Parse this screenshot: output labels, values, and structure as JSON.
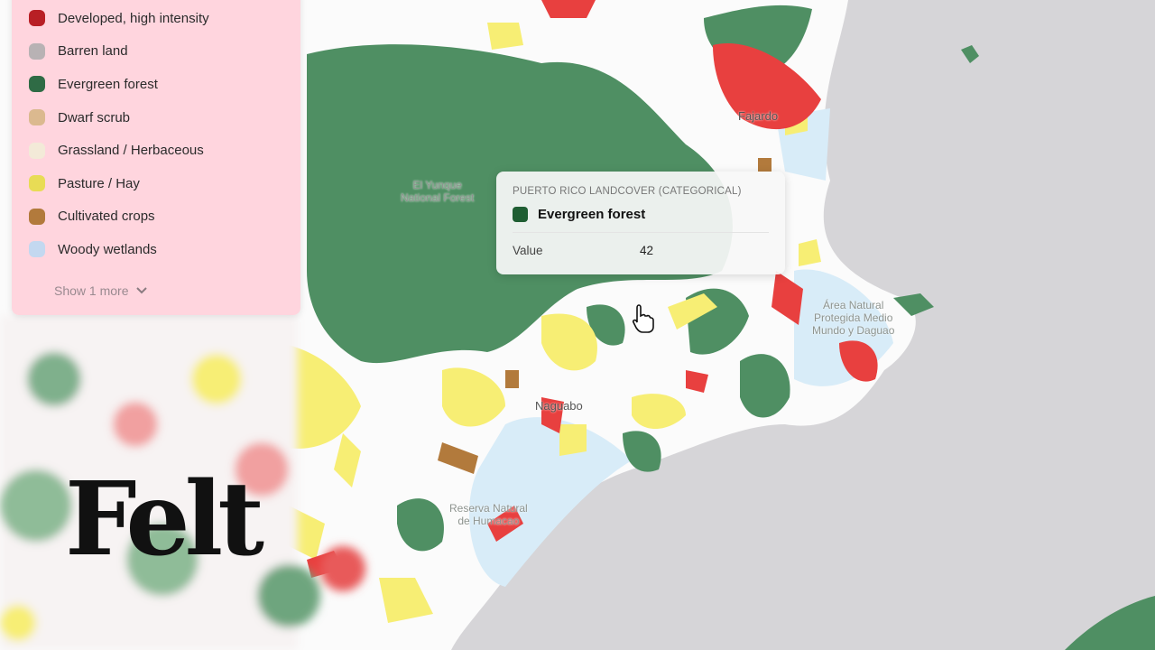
{
  "legend": {
    "items": [
      {
        "label": "Developed, high intensity",
        "color": "#b81f25"
      },
      {
        "label": "Barren land",
        "color": "#b8b2b4"
      },
      {
        "label": "Evergreen forest",
        "color": "#2f6b45"
      },
      {
        "label": "Dwarf scrub",
        "color": "#dbb98f"
      },
      {
        "label": "Grassland / Herbaceous",
        "color": "#f3ead8"
      },
      {
        "label": "Pasture / Hay",
        "color": "#e8dc55"
      },
      {
        "label": "Cultivated crops",
        "color": "#b27a3c"
      },
      {
        "label": "Woody wetlands",
        "color": "#c3d8f0"
      }
    ],
    "show_more": "Show 1 more",
    "show_more_icon": "chevron-down-icon"
  },
  "tooltip": {
    "layer": "PUERTO RICO LANDCOVER (CATEGORICAL)",
    "category": "Evergreen forest",
    "category_color": "#1f5e33",
    "value_label": "Value",
    "value": "42"
  },
  "map_labels": {
    "fajardo": "Fajardo",
    "yunque": "El Yunque\nNational Forest",
    "naguabo": "Naguabo",
    "daguao": "Área Natural\nProtegida Medio\nMundo y Daguao",
    "humacao": "Reserva Natural\nde Humacao"
  },
  "map_colors": {
    "sea": "#d6d5d8",
    "land": "#fbfbfb",
    "forest": "#4f8f63",
    "pasture": "#f7ee74",
    "developed": "#e8403f",
    "wetland": "#d8ecf8"
  },
  "logo": "Felt",
  "cursor": "hand-pointer-icon"
}
